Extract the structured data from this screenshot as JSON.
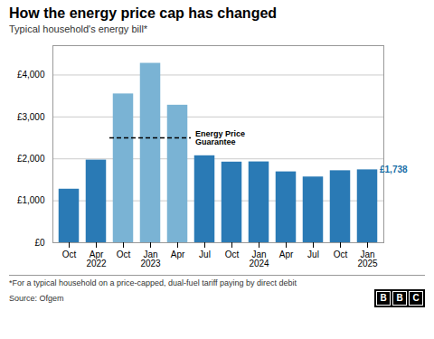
{
  "chart_data": {
    "type": "bar",
    "title": "How the energy price cap has changed",
    "subtitle": "Typical household's energy bill*",
    "categories": [
      "Oct",
      "Apr\n2022",
      "Oct",
      "Jan\n2023",
      "Apr",
      "Jul",
      "Oct",
      "Jan\n2024",
      "Apr",
      "Jul",
      "Oct",
      "Jan\n2025"
    ],
    "values": [
      1277,
      1971,
      3549,
      4279,
      3280,
      2074,
      1923,
      1928,
      1690,
      1568,
      1717,
      1738
    ],
    "colors": [
      "#2a7ab5",
      "#2a7ab5",
      "#7ab3d4",
      "#7ab3d4",
      "#7ab3d4",
      "#2a7ab5",
      "#2a7ab5",
      "#2a7ab5",
      "#2a7ab5",
      "#2a7ab5",
      "#2a7ab5",
      "#2a7ab5"
    ],
    "ylim": [
      0,
      4700
    ],
    "yticks": [
      {
        "value": 0,
        "label": "£0"
      },
      {
        "value": 1000,
        "label": "£1,000"
      },
      {
        "value": 2000,
        "label": "£2,000"
      },
      {
        "value": 3000,
        "label": "£3,000"
      },
      {
        "value": 4000,
        "label": "£4,000"
      }
    ],
    "grid": true,
    "annotations": [
      {
        "type": "line",
        "text": "Energy Price\nGuarantee",
        "y": 2500,
        "x_start": 1.5,
        "x_end": 4.5
      },
      {
        "type": "text",
        "text": "£1,738",
        "x": 11,
        "y": 1738,
        "color": "#1a6fa8"
      }
    ],
    "footnote": "*For a typical household on a price-capped, dual-fuel tariff paying by direct debit",
    "source": "Source: Ofgem",
    "logo": "BBC"
  }
}
